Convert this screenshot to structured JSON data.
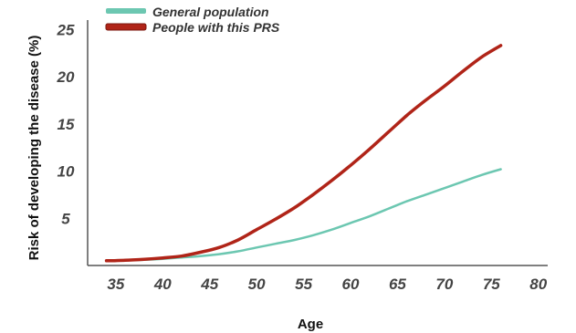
{
  "chart_data": {
    "type": "line",
    "title": "",
    "xlabel": "Age",
    "ylabel": "Risk of developing the disease (%)",
    "xlim": [
      32,
      81
    ],
    "ylim": [
      0,
      26
    ],
    "x_ticks": [
      "35",
      "40",
      "45",
      "50",
      "55",
      "60",
      "65",
      "70",
      "75",
      "80"
    ],
    "y_ticks": [
      "5",
      "10",
      "15",
      "20",
      "25"
    ],
    "grid": false,
    "legend_position": "top-left",
    "series": [
      {
        "name": "General population",
        "color": "#6cc7b1",
        "x": [
          34,
          36,
          38,
          40,
          42,
          44,
          46,
          48,
          50,
          52,
          54,
          56,
          58,
          60,
          62,
          64,
          66,
          68,
          70,
          72,
          74,
          76
        ],
        "y": [
          0.5,
          0.55,
          0.6,
          0.7,
          0.85,
          1.0,
          1.2,
          1.5,
          1.9,
          2.3,
          2.7,
          3.2,
          3.8,
          4.5,
          5.2,
          6.0,
          6.8,
          7.5,
          8.2,
          8.9,
          9.6,
          10.2
        ]
      },
      {
        "name": "People with this PRS",
        "color": "#b02418",
        "x": [
          34,
          36,
          38,
          40,
          42,
          44,
          46,
          48,
          50,
          52,
          54,
          56,
          58,
          60,
          62,
          64,
          66,
          68,
          70,
          72,
          74,
          76
        ],
        "y": [
          0.5,
          0.55,
          0.65,
          0.8,
          1.0,
          1.4,
          1.9,
          2.7,
          3.8,
          4.9,
          6.1,
          7.5,
          9.0,
          10.6,
          12.3,
          14.1,
          15.9,
          17.5,
          19.0,
          20.6,
          22.1,
          23.3
        ]
      }
    ]
  }
}
